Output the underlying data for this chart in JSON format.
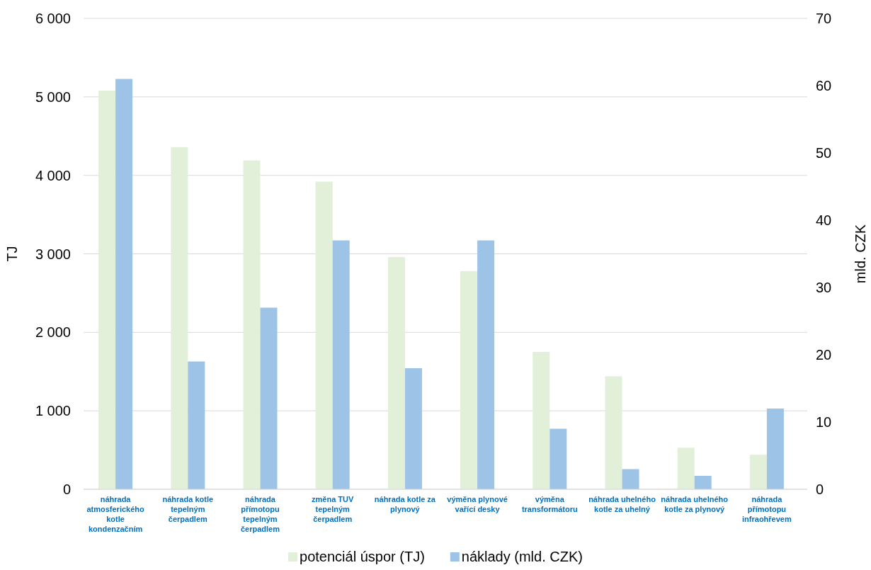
{
  "chart_data": {
    "type": "bar",
    "categories": [
      "náhrada atmosferického kotle kondenzačním",
      "náhrada kotle tepelným čerpadlem",
      "náhrada přímotopu tepelným čerpadlem",
      "změna TUV tepelným čerpadlem",
      "náhrada kotle za plynový",
      "výměna plynové vařící desky",
      "výměna transformátoru",
      "náhrada uhelného kotle za uhelný",
      "náhrada uhelného kotle za plynový",
      "náhrada přímotopu infraohřevem"
    ],
    "series": [
      {
        "name": "potenciál úspor (TJ)",
        "color": "#e2efd9",
        "values": [
          5080,
          4360,
          4190,
          3920,
          2960,
          2780,
          1750,
          1440,
          530,
          440
        ]
      },
      {
        "name": "náklady (mld. CZK)",
        "color": "#9dc3e6",
        "axis": "y2",
        "values": [
          61,
          19,
          27,
          37,
          18,
          37,
          9,
          3,
          2,
          12
        ]
      }
    ],
    "ylabel": "TJ",
    "y2label": "mld. CZK",
    "ylim": [
      0,
      6000
    ],
    "yticks": [
      {
        "value": 0,
        "label": "0"
      },
      {
        "value": 1000,
        "label": "1 000"
      },
      {
        "value": 2000,
        "label": "2 000"
      },
      {
        "value": 3000,
        "label": "3 000"
      },
      {
        "value": 4000,
        "label": "4 000"
      },
      {
        "value": 5000,
        "label": "5 000"
      },
      {
        "value": 6000,
        "label": "6 000"
      }
    ],
    "y2lim": [
      0,
      70
    ],
    "y2ticks": [
      0,
      10,
      20,
      30,
      40,
      50,
      60,
      70
    ],
    "grid": "y",
    "legend": "bottom"
  }
}
